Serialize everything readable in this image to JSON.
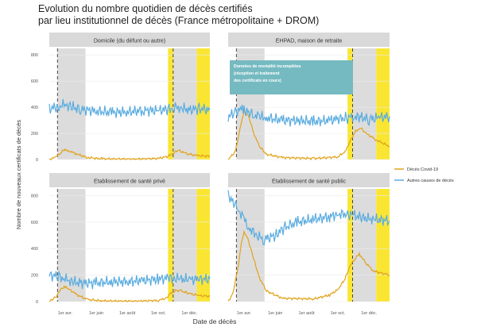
{
  "title": "Evolution du nombre quotidien de décès certifiés",
  "subtitle": "par lieu institutionnel de décès (France métropolitaine + DROM)",
  "colors": {
    "covid": "#E1A31C",
    "other": "#5AACE0",
    "shade_gray": "#DCDCDC",
    "shade_yellow": "#FAE632",
    "strip": "#D9D9D9",
    "annotation_box": "#75BAC0"
  },
  "chart_data": {
    "type": "line",
    "xlabel": "Date de décès",
    "ylabel": "Nombre de nouveaux certificats de décès",
    "ylim": [
      0,
      850
    ],
    "yticks": [
      0,
      200,
      400,
      600,
      800
    ],
    "xlim": [
      "2020-03-01",
      "2021-01-10"
    ],
    "xticks": [
      {
        "date": "2020-04-01",
        "label": "1er avr."
      },
      {
        "date": "2020-06-01",
        "label": "1er juin"
      },
      {
        "date": "2020-08-01",
        "label": "1er août"
      },
      {
        "date": "2020-10-01",
        "label": "1er oct."
      },
      {
        "date": "2020-12-01",
        "label": "1er déc."
      }
    ],
    "lockdowns": [
      {
        "start": "2020-03-17",
        "end": "2020-05-11"
      },
      {
        "start": "2020-10-30",
        "end": "2020-12-15"
      }
    ],
    "dashed_lines": [
      "2020-03-17",
      "2020-10-30"
    ],
    "incomplete_period": {
      "start": "2020-10-20",
      "end": "2021-01-10"
    },
    "legend": [
      {
        "name": "Décès Covid-19",
        "color": "#E1A31C"
      },
      {
        "name": "Autres causes de décès",
        "color": "#5AACE0"
      }
    ],
    "panels": [
      {
        "name": "Domicile (du défunt ou autre)",
        "series": [
          {
            "name": "Décès Covid-19",
            "x": [
              "2020-03-01",
              "2020-03-15",
              "2020-03-25",
              "2020-04-01",
              "2020-04-10",
              "2020-04-25",
              "2020-05-15",
              "2020-06-15",
              "2020-08-15",
              "2020-10-01",
              "2020-10-20",
              "2020-11-01",
              "2020-11-10",
              "2020-11-25",
              "2020-12-15",
              "2021-01-10"
            ],
            "y": [
              0,
              20,
              60,
              75,
              65,
              40,
              15,
              5,
              3,
              8,
              25,
              55,
              70,
              45,
              30,
              25
            ]
          },
          {
            "name": "Autres causes de décès",
            "x": [
              "2020-03-01",
              "2020-03-20",
              "2020-04-01",
              "2020-04-15",
              "2020-05-01",
              "2020-06-01",
              "2020-07-01",
              "2020-08-01",
              "2020-09-01",
              "2020-10-01",
              "2020-10-20",
              "2020-11-01",
              "2020-11-15",
              "2020-12-01",
              "2020-12-20",
              "2021-01-10"
            ],
            "y": [
              390,
              405,
              420,
              400,
              385,
              370,
              360,
              365,
              375,
              375,
              385,
              400,
              395,
              380,
              390,
              380
            ]
          }
        ]
      },
      {
        "name": "EHPAD, maison de retraite",
        "series": [
          {
            "name": "Décès Covid-19",
            "x": [
              "2020-03-01",
              "2020-03-15",
              "2020-03-25",
              "2020-04-01",
              "2020-04-10",
              "2020-04-20",
              "2020-05-01",
              "2020-05-15",
              "2020-06-15",
              "2020-08-15",
              "2020-10-01",
              "2020-10-15",
              "2020-10-25",
              "2020-11-05",
              "2020-11-15",
              "2020-11-25",
              "2020-12-15",
              "2021-01-10"
            ],
            "y": [
              0,
              60,
              250,
              370,
              330,
              200,
              100,
              40,
              15,
              8,
              20,
              60,
              140,
              220,
              240,
              200,
              150,
              100
            ]
          },
          {
            "name": "Autres causes de décès",
            "x": [
              "2020-03-01",
              "2020-03-15",
              "2020-03-25",
              "2020-04-01",
              "2020-04-10",
              "2020-04-20",
              "2020-05-01",
              "2020-05-15",
              "2020-06-15",
              "2020-07-15",
              "2020-08-15",
              "2020-09-15",
              "2020-10-01",
              "2020-10-20",
              "2020-11-01",
              "2020-11-15",
              "2020-12-01",
              "2020-12-20",
              "2021-01-10"
            ],
            "y": [
              330,
              360,
              390,
              380,
              360,
              340,
              330,
              320,
              300,
              300,
              290,
              300,
              310,
              320,
              330,
              320,
              310,
              320,
              330
            ]
          }
        ]
      },
      {
        "name": "Etablissement de santé privé",
        "series": [
          {
            "name": "Décès Covid-19",
            "x": [
              "2020-03-01",
              "2020-03-15",
              "2020-03-25",
              "2020-04-01",
              "2020-04-10",
              "2020-04-25",
              "2020-05-15",
              "2020-06-15",
              "2020-08-15",
              "2020-10-01",
              "2020-10-15",
              "2020-10-25",
              "2020-11-05",
              "2020-11-15",
              "2020-12-01",
              "2020-12-20",
              "2021-01-10"
            ],
            "y": [
              0,
              40,
              100,
              110,
              90,
              50,
              15,
              5,
              3,
              8,
              25,
              60,
              85,
              80,
              60,
              45,
              40
            ]
          },
          {
            "name": "Autres causes de décès",
            "x": [
              "2020-03-01",
              "2020-03-20",
              "2020-04-01",
              "2020-04-15",
              "2020-05-01",
              "2020-06-01",
              "2020-07-01",
              "2020-08-01",
              "2020-09-01",
              "2020-10-01",
              "2020-10-20",
              "2020-11-01",
              "2020-11-15",
              "2020-12-01",
              "2020-12-20",
              "2021-01-10"
            ],
            "y": [
              200,
              190,
              170,
              150,
              140,
              140,
              150,
              150,
              160,
              170,
              175,
              175,
              170,
              165,
              170,
              170
            ]
          }
        ]
      },
      {
        "name": "Etablissement de santé public",
        "series": [
          {
            "name": "Décès Covid-19",
            "x": [
              "2020-03-01",
              "2020-03-10",
              "2020-03-20",
              "2020-03-27",
              "2020-04-01",
              "2020-04-08",
              "2020-04-20",
              "2020-05-01",
              "2020-05-15",
              "2020-06-15",
              "2020-08-15",
              "2020-09-15",
              "2020-10-01",
              "2020-10-15",
              "2020-10-25",
              "2020-11-05",
              "2020-11-12",
              "2020-11-25",
              "2020-12-10",
              "2021-01-10"
            ],
            "y": [
              0,
              60,
              250,
              450,
              520,
              480,
              320,
              180,
              80,
              25,
              20,
              50,
              90,
              170,
              270,
              330,
              360,
              290,
              230,
              200
            ]
          },
          {
            "name": "Autres causes de décès",
            "x": [
              "2020-03-01",
              "2020-03-10",
              "2020-03-20",
              "2020-04-01",
              "2020-04-10",
              "2020-04-25",
              "2020-05-10",
              "2020-06-01",
              "2020-06-20",
              "2020-07-15",
              "2020-08-15",
              "2020-09-15",
              "2020-10-01",
              "2020-10-20",
              "2020-11-01",
              "2020-11-20",
              "2020-12-10",
              "2021-01-10"
            ],
            "y": [
              800,
              760,
              700,
              620,
              560,
              500,
              470,
              500,
              560,
              600,
              620,
              640,
              660,
              660,
              650,
              630,
              620,
              610
            ]
          }
        ]
      }
    ],
    "annotation": {
      "panel": 1,
      "lines": [
        "Données de mortalité incomplètes",
        "(réception et traitement",
        "des certificats en cours)"
      ]
    }
  }
}
